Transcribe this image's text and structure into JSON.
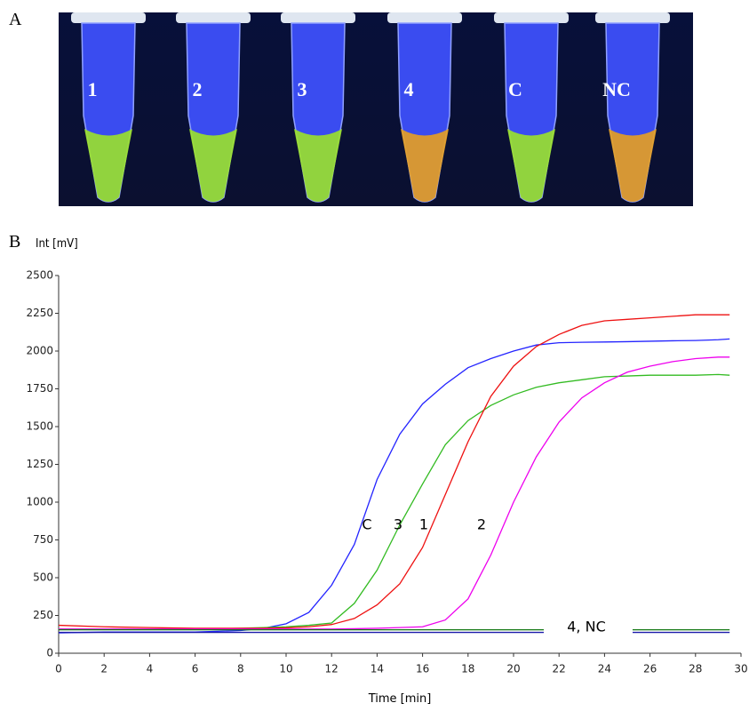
{
  "panel_a": {
    "label": "A",
    "tube_labels": [
      "1",
      "2",
      "3",
      "4",
      "C",
      "NC"
    ]
  },
  "chart_data": {
    "type": "line",
    "panel_label": "B",
    "ylabel": "Int [mV]",
    "xlabel": "Time [min]",
    "x": [
      0,
      2,
      4,
      6,
      8,
      9,
      10,
      11,
      12,
      13,
      14,
      15,
      16,
      17,
      18,
      19,
      20,
      21,
      22,
      23,
      24,
      25,
      26,
      27,
      28,
      29,
      29.5
    ],
    "series": [
      {
        "name": "C",
        "color": "#2424ff",
        "values": [
          135,
          140,
          140,
          140,
          150,
          165,
          195,
          270,
          450,
          720,
          1150,
          1450,
          1650,
          1780,
          1890,
          1950,
          2000,
          2040,
          2055,
          2058,
          2060,
          2062,
          2065,
          2068,
          2070,
          2075,
          2080
        ]
      },
      {
        "name": "3",
        "color": "#33bb22",
        "values": [
          160,
          160,
          160,
          160,
          165,
          170,
          175,
          185,
          200,
          330,
          550,
          850,
          1120,
          1380,
          1540,
          1640,
          1710,
          1760,
          1790,
          1810,
          1830,
          1835,
          1840,
          1840,
          1840,
          1845,
          1840
        ]
      },
      {
        "name": "1",
        "color": "#ee1111",
        "values": [
          185,
          175,
          170,
          165,
          165,
          165,
          168,
          175,
          190,
          230,
          320,
          460,
          700,
          1050,
          1400,
          1700,
          1900,
          2030,
          2110,
          2170,
          2200,
          2210,
          2220,
          2230,
          2240,
          2240,
          2240
        ]
      },
      {
        "name": "2",
        "color": "#ee00ee",
        "values": [
          160,
          160,
          160,
          160,
          160,
          160,
          160,
          160,
          160,
          162,
          165,
          170,
          175,
          220,
          360,
          650,
          1000,
          1300,
          1530,
          1690,
          1790,
          1860,
          1900,
          1930,
          1950,
          1960,
          1960
        ]
      },
      {
        "color": "#117711",
        "x": [
          0,
          29.5
        ],
        "values": [
          155,
          155
        ]
      },
      {
        "color": "#1a1aaa",
        "x": [
          0,
          29.5
        ],
        "values": [
          138,
          138
        ]
      }
    ],
    "annotation": "4,  NC",
    "xlim": [
      0,
      30
    ],
    "xticks": [
      0,
      2,
      4,
      6,
      8,
      10,
      12,
      14,
      16,
      18,
      20,
      22,
      24,
      26,
      28,
      30
    ],
    "ylim": [
      0,
      2500
    ],
    "yticks": [
      0,
      250,
      500,
      750,
      1000,
      1250,
      1500,
      1750,
      2000,
      2250,
      2500
    ]
  }
}
